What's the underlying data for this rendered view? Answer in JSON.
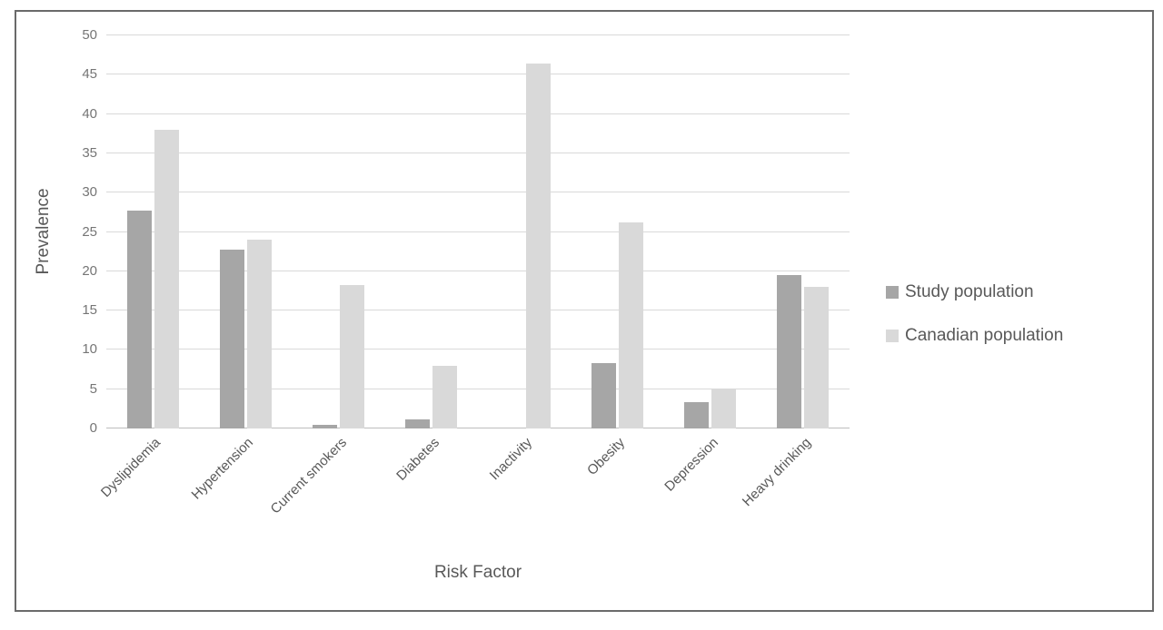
{
  "chart_data": {
    "type": "bar",
    "title": "",
    "xlabel": "Risk Factor",
    "ylabel": "Prevalence",
    "categories": [
      "Dyslipidemia",
      "Hypertension",
      "Current smokers",
      "Diabetes",
      "Inactivity",
      "Obesity",
      "Depression",
      "Heavy drinking"
    ],
    "series": [
      {
        "name": "Study population",
        "color": "#a6a6a6",
        "values": [
          27.7,
          22.8,
          0.5,
          1.1,
          0,
          8.3,
          3.3,
          19.5
        ]
      },
      {
        "name": "Canadian population",
        "color": "#d9d9d9",
        "values": [
          38,
          24,
          18.2,
          8,
          46.4,
          26.2,
          5,
          18
        ]
      }
    ],
    "ylim": [
      0,
      50
    ],
    "ytick_step": 5,
    "ytick_labels": [
      "0",
      "5",
      "10",
      "15",
      "20",
      "25",
      "30",
      "35",
      "40",
      "45",
      "50"
    ],
    "grid": true,
    "grid_color": "#d9d9d9",
    "legend_position": "right-middle"
  }
}
